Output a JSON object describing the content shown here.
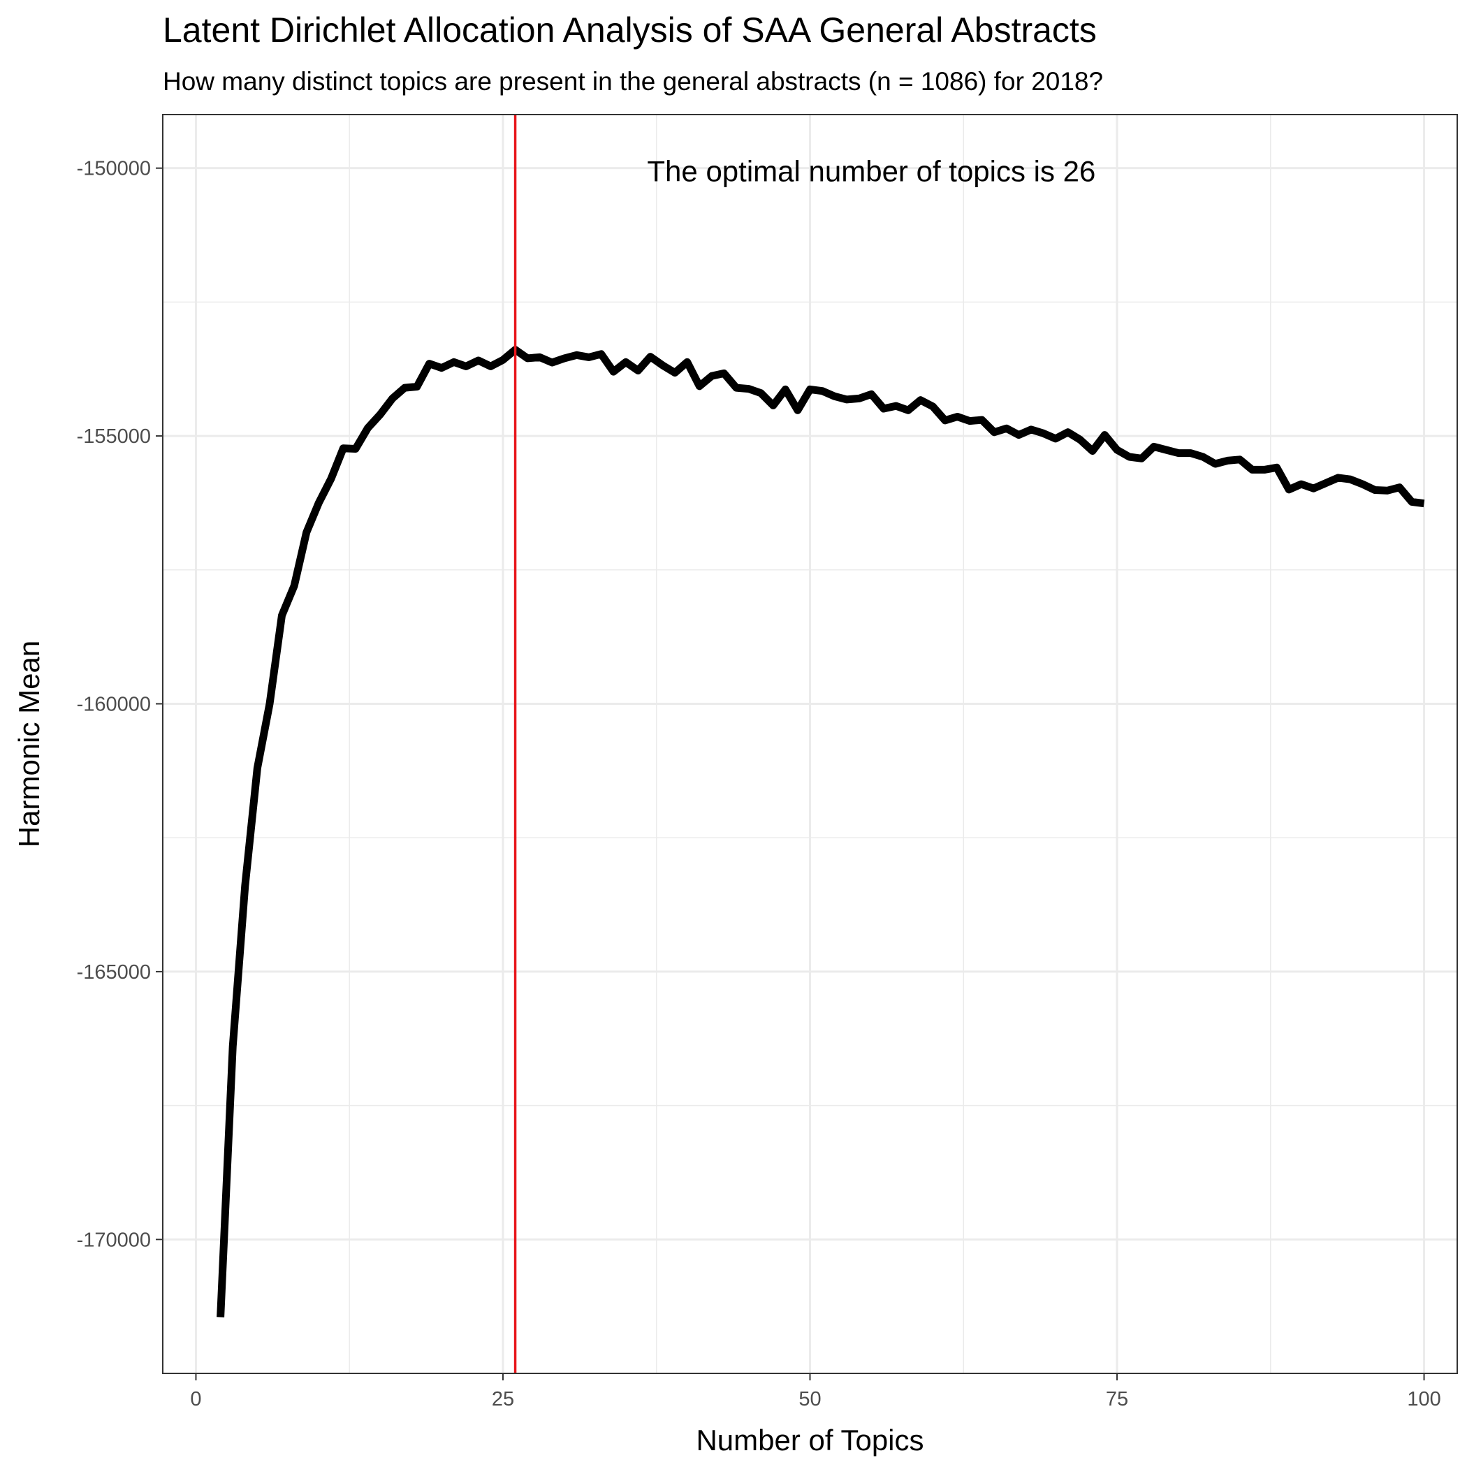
{
  "chart_data": {
    "type": "line",
    "title": "Latent Dirichlet Allocation Analysis of SAA General Abstracts",
    "subtitle": "How many distinct topics are present in the general abstracts (n = 1086) for 2018?",
    "xlabel": "Number of Topics",
    "ylabel": "Harmonic Mean",
    "xlim": [
      -2.7,
      102.7
    ],
    "ylim": [
      -172500,
      -149000
    ],
    "x_ticks": [
      {
        "value": 0,
        "label": "0"
      },
      {
        "value": 25,
        "label": "25"
      },
      {
        "value": 50,
        "label": "50"
      },
      {
        "value": 75,
        "label": "75"
      },
      {
        "value": 100,
        "label": "100"
      }
    ],
    "y_ticks": [
      {
        "value": -150000,
        "label": "-150000"
      },
      {
        "value": -155000,
        "label": "-155000"
      },
      {
        "value": -160000,
        "label": "-160000"
      },
      {
        "value": -165000,
        "label": "-165000"
      },
      {
        "value": -170000,
        "label": "-170000"
      }
    ],
    "grid": true,
    "legend": "none",
    "vline": {
      "x": 26,
      "color": "#e8161b"
    },
    "annotation": {
      "text": "The optimal number of topics is 26",
      "x": 55,
      "y": -150050
    },
    "series": [
      {
        "color": "#000000",
        "x": [
          2,
          3,
          4,
          5,
          6,
          7,
          8,
          9,
          10,
          11,
          12,
          13,
          14,
          15,
          16,
          17,
          18,
          19,
          20,
          21,
          22,
          23,
          24,
          25,
          26,
          27,
          28,
          29,
          30,
          31,
          32,
          33,
          34,
          35,
          36,
          37,
          38,
          39,
          40,
          41,
          42,
          43,
          44,
          45,
          46,
          47,
          48,
          49,
          50,
          51,
          52,
          53,
          54,
          55,
          56,
          57,
          58,
          59,
          60,
          61,
          62,
          63,
          64,
          65,
          66,
          67,
          68,
          69,
          70,
          71,
          72,
          73,
          74,
          75,
          76,
          77,
          78,
          79,
          80,
          81,
          82,
          83,
          84,
          85,
          86,
          87,
          88,
          89,
          90,
          91,
          92,
          93,
          94,
          95,
          96,
          97,
          98,
          99,
          100
        ],
        "y": [
          -171450,
          -166400,
          -163400,
          -161200,
          -160000,
          -158350,
          -157800,
          -156800,
          -156250,
          -155800,
          -155230,
          -155240,
          -154850,
          -154600,
          -154300,
          -154100,
          -154080,
          -153650,
          -153730,
          -153620,
          -153700,
          -153590,
          -153700,
          -153580,
          -153390,
          -153550,
          -153530,
          -153630,
          -153550,
          -153490,
          -153530,
          -153470,
          -153800,
          -153620,
          -153780,
          -153520,
          -153680,
          -153820,
          -153620,
          -154070,
          -153880,
          -153830,
          -154100,
          -154120,
          -154200,
          -154430,
          -154130,
          -154520,
          -154130,
          -154160,
          -154260,
          -154320,
          -154300,
          -154220,
          -154490,
          -154440,
          -154520,
          -154330,
          -154450,
          -154710,
          -154640,
          -154720,
          -154700,
          -154930,
          -154860,
          -154980,
          -154880,
          -154950,
          -155050,
          -154930,
          -155070,
          -155280,
          -154980,
          -155260,
          -155390,
          -155420,
          -155200,
          -155260,
          -155320,
          -155320,
          -155390,
          -155520,
          -155460,
          -155440,
          -155630,
          -155630,
          -155590,
          -156000,
          -155900,
          -155980,
          -155880,
          -155780,
          -155810,
          -155900,
          -156010,
          -156020,
          -155960,
          -156230,
          -156260
        ]
      }
    ]
  }
}
